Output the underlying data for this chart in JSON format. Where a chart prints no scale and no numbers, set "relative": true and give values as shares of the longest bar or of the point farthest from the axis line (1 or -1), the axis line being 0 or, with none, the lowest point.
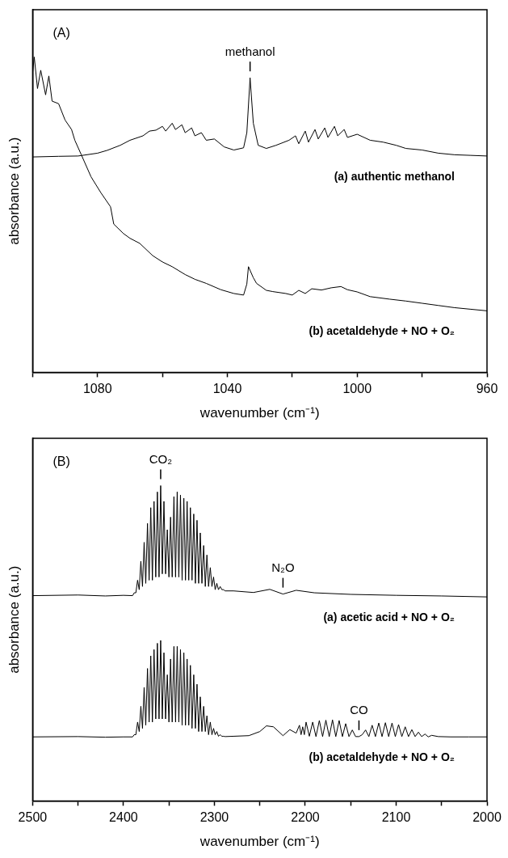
{
  "chart_data": [
    {
      "type": "line",
      "xlabel": "wavenumber (cm⁻¹)",
      "ylabel": "absorbance (a.u.)",
      "relative": true,
      "marker": "none",
      "legend": false,
      "xlim": [
        1100,
        960
      ],
      "xticks": [
        {
          "value": 1100,
          "label": null
        },
        1080,
        {
          "value": 1060,
          "label": null
        },
        1040,
        {
          "value": 1020,
          "label": null
        },
        1000,
        {
          "value": 980,
          "label": null
        },
        960
      ],
      "annotations": [
        "(A)",
        {
          "text": "methanol",
          "x": 1033,
          "y": 0.934
        }
      ],
      "series": [
        {
          "name": "(a) authentic methanol",
          "color": "#000000",
          "x": [
            1100,
            1092,
            1086,
            1080,
            1077,
            1073,
            1070,
            1066,
            1064,
            1062,
            1060,
            1059,
            1057,
            1056,
            1054,
            1053,
            1051,
            1050,
            1048,
            1046.5,
            1044,
            1041,
            1038,
            1035,
            1034,
            1033,
            1032,
            1030.5,
            1028,
            1025,
            1021,
            1019,
            1018,
            1016,
            1015,
            1013,
            1012,
            1010,
            1009,
            1007,
            1006,
            1004,
            1003,
            1000,
            996,
            992,
            988,
            985,
            980,
            975,
            970,
            965,
            960
          ],
          "values": [
            0.683,
            0.685,
            0.686,
            0.695,
            0.704,
            0.72,
            0.736,
            0.75,
            0.765,
            0.768,
            0.78,
            0.765,
            0.79,
            0.77,
            0.785,
            0.76,
            0.775,
            0.75,
            0.76,
            0.736,
            0.74,
            0.715,
            0.705,
            0.712,
            0.76,
            0.934,
            0.79,
            0.72,
            0.71,
            0.72,
            0.736,
            0.75,
            0.725,
            0.765,
            0.73,
            0.77,
            0.74,
            0.775,
            0.745,
            0.78,
            0.75,
            0.77,
            0.745,
            0.755,
            0.736,
            0.73,
            0.72,
            0.71,
            0.705,
            0.695,
            0.69,
            0.688,
            0.686
          ]
        },
        {
          "name": "(b) acetaldehyde + NO + O₂",
          "color": "#000000",
          "x": [
            1100,
            1099.5,
            1098.5,
            1097.5,
            1096,
            1095,
            1094,
            1092,
            1090,
            1088,
            1087,
            1085,
            1082,
            1079,
            1076,
            1075,
            1072,
            1070,
            1067,
            1063,
            1060,
            1057,
            1053,
            1050,
            1046.5,
            1042,
            1038,
            1035,
            1034,
            1033.5,
            1032,
            1031,
            1028,
            1026,
            1022,
            1020,
            1018,
            1016,
            1014,
            1011,
            1008,
            1005,
            1003,
            1000,
            996,
            990,
            985,
            980,
            975,
            970,
            965,
            960
          ],
          "values": [
            0.95,
            1.0,
            0.9,
            0.958,
            0.88,
            0.94,
            0.86,
            0.852,
            0.8,
            0.77,
            0.736,
            0.69,
            0.62,
            0.57,
            0.525,
            0.47,
            0.44,
            0.425,
            0.409,
            0.37,
            0.35,
            0.335,
            0.31,
            0.295,
            0.282,
            0.262,
            0.25,
            0.245,
            0.28,
            0.335,
            0.3,
            0.282,
            0.26,
            0.256,
            0.25,
            0.245,
            0.26,
            0.25,
            0.265,
            0.261,
            0.268,
            0.272,
            0.262,
            0.255,
            0.24,
            0.232,
            0.226,
            0.219,
            0.212,
            0.205,
            0.2,
            0.195
          ]
        }
      ]
    },
    {
      "type": "line",
      "xlabel": "wavenumber (cm⁻¹)",
      "ylabel": "absorbance (a.u.)",
      "relative": true,
      "marker": "none",
      "legend": false,
      "xlim": [
        2500,
        2000
      ],
      "xticks": [
        2500,
        {
          "value": 2450,
          "label": null
        },
        2400,
        {
          "value": 2350,
          "label": null
        },
        2300,
        {
          "value": 2250,
          "label": null
        },
        2200,
        {
          "value": 2150,
          "label": null
        },
        2100,
        {
          "value": 2050,
          "label": null
        },
        2000
      ],
      "annotations": [
        "(B)",
        {
          "text": "CO₂",
          "x": 2359.1,
          "y": 1.0
        },
        {
          "text": "N₂O",
          "x": 2224.5,
          "y": 0.656
        },
        {
          "text": "CO",
          "x": 2140.9,
          "y": 0.204
        }
      ],
      "series": [
        {
          "name": "(a) acetic acid + NO + O₂",
          "color": "#000000",
          "x": [
            2500,
            2450,
            2420,
            2400,
            2390,
            2388.2,
            2386.4,
            2384.5,
            2382.7,
            2380.9,
            2379.1,
            2377.3,
            2375.5,
            2373.6,
            2371.8,
            2370,
            2368.2,
            2366.4,
            2364.5,
            2362.7,
            2360.9,
            2359.1,
            2357.3,
            2355.5,
            2353.7,
            2351.8,
            2350,
            2348.2,
            2346.4,
            2344.5,
            2342.7,
            2340.9,
            2339.1,
            2337.3,
            2335.5,
            2333.6,
            2331.8,
            2330,
            2328.2,
            2326.4,
            2324.6,
            2322.7,
            2320.9,
            2319.1,
            2317.3,
            2315.5,
            2313.7,
            2311.8,
            2310,
            2308.2,
            2306.4,
            2304.5,
            2302.7,
            2300.9,
            2299.1,
            2297.3,
            2295.5,
            2293.6,
            2291.8,
            2290,
            2288.2,
            2279,
            2257,
            2239,
            2224.5,
            2210,
            2190,
            2150,
            2100,
            2050,
            2000
          ],
          "values": [
            0.651,
            0.653,
            0.65,
            0.652,
            0.651,
            0.66,
            0.66,
            0.7,
            0.67,
            0.76,
            0.68,
            0.82,
            0.69,
            0.88,
            0.7,
            0.93,
            0.7,
            0.95,
            0.71,
            0.98,
            0.71,
            1.0,
            0.72,
            0.95,
            0.72,
            0.86,
            0.71,
            0.9,
            0.71,
            0.965,
            0.71,
            0.98,
            0.71,
            0.97,
            0.7,
            0.96,
            0.7,
            0.95,
            0.7,
            0.93,
            0.7,
            0.91,
            0.69,
            0.89,
            0.69,
            0.85,
            0.69,
            0.81,
            0.68,
            0.78,
            0.68,
            0.74,
            0.68,
            0.71,
            0.67,
            0.69,
            0.67,
            0.68,
            0.67,
            0.67,
            0.666,
            0.666,
            0.661,
            0.671,
            0.656,
            0.668,
            0.66,
            0.655,
            0.652,
            0.65,
            0.647
          ]
        },
        {
          "name": "(b) acetaldehyde + NO + O₂",
          "color": "#000000",
          "x": [
            2500,
            2450,
            2420,
            2400,
            2390,
            2388.2,
            2386.4,
            2384.5,
            2382.7,
            2380.9,
            2379.1,
            2377.3,
            2375.5,
            2373.6,
            2371.8,
            2370,
            2368.2,
            2366.4,
            2364.5,
            2362.7,
            2360.9,
            2359.1,
            2357.3,
            2355.5,
            2353.7,
            2351.8,
            2350,
            2348.2,
            2346.4,
            2344.5,
            2342.7,
            2340.9,
            2339.1,
            2337.3,
            2335.5,
            2333.6,
            2331.8,
            2330,
            2328.2,
            2326.4,
            2324.6,
            2322.7,
            2320.9,
            2319.1,
            2317.3,
            2315.5,
            2313.7,
            2311.8,
            2310,
            2308.2,
            2306.4,
            2304.5,
            2302.7,
            2300.9,
            2299.1,
            2297.3,
            2295.5,
            2293.6,
            2291.8,
            2290,
            2288.2,
            2279,
            2262,
            2250,
            2242.7,
            2235,
            2224.5,
            2217,
            2210,
            2206.4,
            2204.6,
            2202.8,
            2201,
            2199.1,
            2195.5,
            2191.8,
            2188.2,
            2184.5,
            2180.9,
            2177.3,
            2173.6,
            2170,
            2166.4,
            2162.7,
            2159.1,
            2155.5,
            2151.9,
            2148.2,
            2144.6,
            2140.9,
            2137.3,
            2133.6,
            2130,
            2126.4,
            2122.8,
            2119.1,
            2115.5,
            2111.8,
            2108.2,
            2104.5,
            2100.9,
            2097.3,
            2093.7,
            2090,
            2086.4,
            2082.7,
            2079.1,
            2075.5,
            2071.9,
            2068.2,
            2064.6,
            2060.9,
            2053.6,
            2040,
            2020,
            2000
          ],
          "values": [
            0.203,
            0.204,
            0.202,
            0.203,
            0.203,
            0.21,
            0.21,
            0.25,
            0.22,
            0.3,
            0.23,
            0.36,
            0.24,
            0.42,
            0.25,
            0.46,
            0.25,
            0.48,
            0.26,
            0.5,
            0.26,
            0.509,
            0.26,
            0.47,
            0.26,
            0.4,
            0.25,
            0.45,
            0.25,
            0.49,
            0.25,
            0.49,
            0.25,
            0.48,
            0.24,
            0.47,
            0.24,
            0.45,
            0.24,
            0.43,
            0.23,
            0.4,
            0.23,
            0.37,
            0.22,
            0.33,
            0.22,
            0.3,
            0.22,
            0.27,
            0.21,
            0.25,
            0.21,
            0.23,
            0.21,
            0.22,
            0.205,
            0.21,
            0.205,
            0.205,
            0.204,
            0.205,
            0.207,
            0.22,
            0.238,
            0.235,
            0.207,
            0.226,
            0.215,
            0.24,
            0.21,
            0.235,
            0.21,
            0.25,
            0.205,
            0.25,
            0.204,
            0.255,
            0.204,
            0.256,
            0.204,
            0.257,
            0.204,
            0.255,
            0.204,
            0.245,
            0.204,
            0.225,
            0.204,
            0.204,
            0.21,
            0.225,
            0.204,
            0.24,
            0.204,
            0.247,
            0.204,
            0.248,
            0.204,
            0.247,
            0.204,
            0.242,
            0.204,
            0.235,
            0.204,
            0.226,
            0.204,
            0.218,
            0.204,
            0.212,
            0.203,
            0.208,
            0.204,
            0.203,
            0.203,
            0.203
          ]
        }
      ]
    }
  ]
}
